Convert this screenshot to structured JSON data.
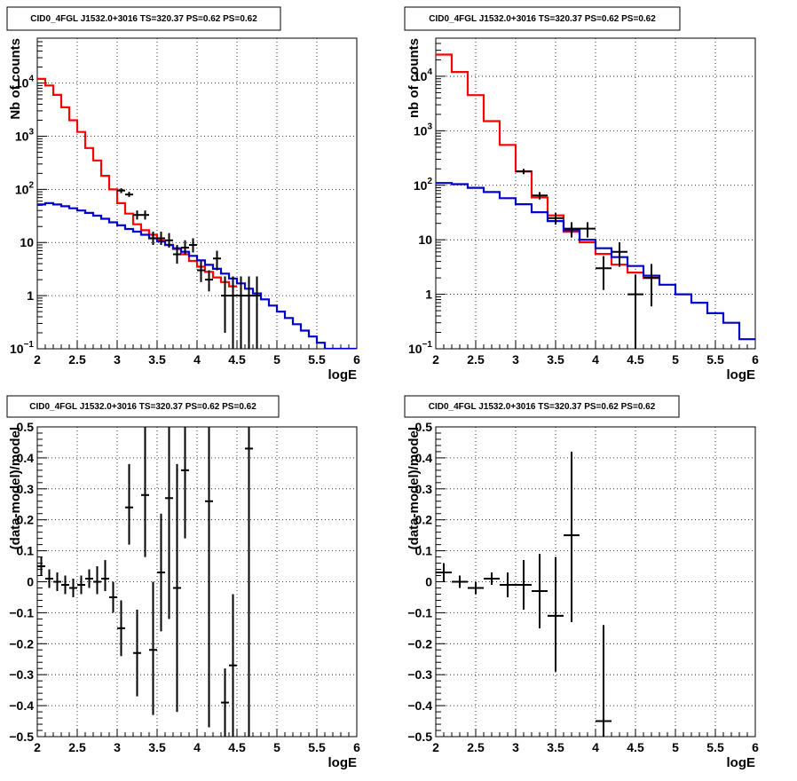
{
  "chart_data": [
    {
      "type": "line",
      "title": "CID0_4FGL J1532.0+3016 TS=320.37 PS=0.62 PS=0.62",
      "xlabel": "logE",
      "ylabel": "Nb of counts",
      "xlim": [
        2,
        6
      ],
      "ylim": [
        0.1,
        70000
      ],
      "yscale": "log",
      "grid": true,
      "xticks": [
        "2",
        "2.5",
        "3",
        "3.5",
        "4",
        "4.5",
        "5",
        "5.5",
        "6"
      ],
      "yticks": [
        {
          "v": 0.1,
          "t": "10",
          "sup": "−1"
        },
        {
          "v": 1,
          "t": "1",
          "sup": ""
        },
        {
          "v": 10,
          "t": "10",
          "sup": ""
        },
        {
          "v": 100,
          "t": "10",
          "sup": "2"
        },
        {
          "v": 1000,
          "t": "10",
          "sup": "3"
        },
        {
          "v": 10000,
          "t": "10",
          "sup": "4"
        }
      ],
      "series": [
        {
          "color": "#ff0000",
          "binwidth": 0.1,
          "x": [
            2.0,
            2.1,
            2.2,
            2.3,
            2.4,
            2.5,
            2.6,
            2.7,
            2.8,
            2.9,
            3.0,
            3.1,
            3.2,
            3.3,
            3.4,
            3.5,
            3.6,
            3.7,
            3.8,
            3.9,
            4.0,
            4.1,
            4.2,
            4.3,
            4.4
          ],
          "y": [
            12000,
            9000,
            6000,
            3500,
            2000,
            1200,
            600,
            350,
            180,
            100,
            55,
            35,
            22,
            17,
            14,
            11,
            9,
            7.5,
            6,
            4.5,
            3.5,
            2.8,
            2.2,
            1.8,
            1.5
          ]
        },
        {
          "color": "#0000cc",
          "binwidth": 0.1,
          "x": [
            2.0,
            2.1,
            2.2,
            2.3,
            2.4,
            2.5,
            2.6,
            2.7,
            2.8,
            2.9,
            3.0,
            3.1,
            3.2,
            3.3,
            3.4,
            3.5,
            3.6,
            3.7,
            3.8,
            3.9,
            4.0,
            4.1,
            4.2,
            4.3,
            4.4,
            4.5,
            4.6,
            4.7,
            4.8,
            4.9,
            5.0,
            5.1,
            5.2,
            5.3,
            5.4,
            5.5,
            5.6,
            5.7,
            5.8,
            5.9
          ],
          "y": [
            52,
            55,
            52,
            48,
            44,
            40,
            36,
            32,
            28,
            24,
            21,
            18,
            16,
            14,
            12,
            10.5,
            9,
            7.8,
            6.7,
            5.6,
            4.6,
            3.8,
            3.2,
            2.6,
            2.1,
            1.7,
            1.35,
            1.1,
            0.85,
            0.65,
            0.5,
            0.38,
            0.29,
            0.22,
            0.17,
            0.13,
            0.1,
            0.1,
            0.1,
            0.1
          ]
        },
        {
          "color": "#000000",
          "kind": "points",
          "x": [
            3.05,
            3.15,
            3.25,
            3.35,
            3.45,
            3.55,
            3.65,
            3.75,
            3.85,
            3.95,
            4.05,
            4.15,
            4.25,
            4.35,
            4.45,
            4.55,
            4.65,
            4.75
          ],
          "y": [
            95,
            80,
            33,
            33,
            12,
            12,
            11,
            6,
            8,
            9,
            3,
            2,
            5,
            1,
            1,
            1,
            1,
            1
          ],
          "lo": [
            85,
            72,
            27,
            27,
            9,
            9,
            8,
            4,
            6,
            6.5,
            1.8,
            1.2,
            3,
            0.2,
            0.1,
            0.1,
            0.1,
            0.1
          ],
          "hi": [
            105,
            90,
            40,
            40,
            16,
            16,
            15,
            9,
            11,
            12,
            4.5,
            3,
            7,
            2.3,
            2.3,
            2.3,
            2.3,
            2.3
          ]
        }
      ]
    },
    {
      "type": "line",
      "title": "CID0_4FGL J1532.0+3016 TS=320.37 PS=0.62 PS=0.62",
      "xlabel": "logE",
      "ylabel": "nb of counts",
      "xlim": [
        2,
        6
      ],
      "ylim": [
        0.1,
        50000
      ],
      "yscale": "log",
      "grid": true,
      "xticks": [
        "2",
        "2.5",
        "3",
        "3.5",
        "4",
        "4.5",
        "5",
        "5.5",
        "6"
      ],
      "yticks": [
        {
          "v": 0.1,
          "t": "10",
          "sup": "−1"
        },
        {
          "v": 1,
          "t": "1",
          "sup": ""
        },
        {
          "v": 10,
          "t": "10",
          "sup": ""
        },
        {
          "v": 100,
          "t": "10",
          "sup": "2"
        },
        {
          "v": 1000,
          "t": "10",
          "sup": "3"
        },
        {
          "v": 10000,
          "t": "10",
          "sup": "4"
        }
      ],
      "series": [
        {
          "color": "#ff0000",
          "binwidth": 0.2,
          "x": [
            2.0,
            2.2,
            2.4,
            2.6,
            2.8,
            3.0,
            3.2,
            3.4,
            3.6,
            3.8,
            4.0,
            4.2,
            4.4,
            4.6
          ],
          "y": [
            25000,
            12000,
            4500,
            1500,
            550,
            180,
            60,
            28,
            14,
            9,
            5.5,
            3.5,
            2.5,
            2
          ]
        },
        {
          "color": "#0000cc",
          "binwidth": 0.2,
          "x": [
            2.0,
            2.2,
            2.4,
            2.6,
            2.8,
            3.0,
            3.2,
            3.4,
            3.6,
            3.8,
            4.0,
            4.2,
            4.4,
            4.6,
            4.8,
            5.0,
            5.2,
            5.4,
            5.6,
            5.8
          ],
          "y": [
            110,
            105,
            90,
            75,
            58,
            45,
            32,
            22,
            15,
            10,
            7,
            4.8,
            3.3,
            2.2,
            1.5,
            1.0,
            0.7,
            0.45,
            0.3,
            0.15
          ]
        },
        {
          "color": "#000000",
          "kind": "points",
          "x": [
            3.1,
            3.3,
            3.5,
            3.7,
            3.9,
            4.1,
            4.3,
            4.5,
            4.7
          ],
          "y": [
            180,
            65,
            25,
            16,
            16,
            3,
            6,
            1,
            2
          ],
          "lo": [
            160,
            55,
            19,
            11,
            11,
            1.2,
            3.2,
            0.1,
            0.6
          ],
          "hi": [
            200,
            75,
            31,
            21,
            21,
            5,
            9,
            2.3,
            3.6
          ]
        }
      ]
    },
    {
      "type": "scatter",
      "title": "CID0_4FGL J1532.0+3016 TS=320.37 PS=0.62 PS=0.62",
      "xlabel": "logE",
      "ylabel": "(data-model)/model",
      "xlim": [
        2,
        6
      ],
      "ylim": [
        -0.5,
        0.5
      ],
      "grid": true,
      "xticks": [
        "2",
        "2.5",
        "3",
        "3.5",
        "4",
        "4.5",
        "5",
        "5.5",
        "6"
      ],
      "yticks": [
        "−0.5",
        "−0.4",
        "−0.3",
        "−0.2",
        "−0.1",
        "0",
        "0.1",
        "0.2",
        "0.3",
        "0.4",
        "0.5"
      ],
      "points": {
        "x": [
          2.05,
          2.15,
          2.25,
          2.35,
          2.45,
          2.55,
          2.65,
          2.75,
          2.85,
          2.95,
          3.05,
          3.15,
          3.25,
          3.35,
          3.45,
          3.55,
          3.65,
          3.75,
          3.85,
          4.15,
          4.35,
          4.45,
          4.65
        ],
        "y": [
          0.05,
          0.01,
          0.0,
          -0.01,
          -0.02,
          -0.01,
          0.01,
          0.0,
          0.01,
          -0.05,
          -0.15,
          0.24,
          -0.23,
          0.28,
          -0.22,
          0.03,
          0.27,
          -0.02,
          0.36,
          0.26,
          -0.39,
          -0.27,
          0.43
        ],
        "lo": [
          0.02,
          -0.02,
          -0.03,
          -0.04,
          -0.05,
          -0.04,
          -0.02,
          -0.04,
          -0.03,
          -0.1,
          -0.24,
          0.12,
          -0.37,
          0.08,
          -0.43,
          -0.16,
          -0.12,
          -0.42,
          0.14,
          -0.47,
          -0.5,
          -0.5,
          -0.5
        ],
        "hi": [
          0.08,
          0.04,
          0.03,
          0.02,
          0.01,
          0.02,
          0.04,
          0.05,
          0.07,
          0.0,
          -0.06,
          0.38,
          -0.09,
          0.5,
          0.0,
          0.22,
          0.5,
          0.38,
          0.5,
          0.5,
          -0.28,
          -0.04,
          0.5
        ]
      }
    },
    {
      "type": "scatter",
      "title": "CID0_4FGL J1532.0+3016 TS=320.37 PS=0.62 PS=0.62",
      "xlabel": "logE",
      "ylabel": "(data-model)/model",
      "xlim": [
        2,
        6
      ],
      "ylim": [
        -0.5,
        0.5
      ],
      "grid": true,
      "xticks": [
        "2",
        "2.5",
        "3",
        "3.5",
        "4",
        "4.5",
        "5",
        "5.5",
        "6"
      ],
      "yticks": [
        "−0.5",
        "−0.4",
        "−0.3",
        "−0.2",
        "−0.1",
        "0",
        "0.1",
        "0.2",
        "0.3",
        "0.4",
        "0.5"
      ],
      "points": {
        "x": [
          2.1,
          2.3,
          2.5,
          2.7,
          2.9,
          3.1,
          3.3,
          3.5,
          3.7,
          4.1
        ],
        "y": [
          0.03,
          0.0,
          -0.02,
          0.01,
          -0.01,
          -0.01,
          -0.03,
          -0.11,
          0.15,
          -0.45
        ],
        "lo": [
          0.0,
          -0.02,
          -0.04,
          -0.01,
          -0.05,
          -0.09,
          -0.15,
          -0.29,
          -0.13,
          -0.5
        ],
        "hi": [
          0.06,
          0.02,
          0.0,
          0.03,
          0.03,
          0.07,
          0.09,
          0.08,
          0.42,
          -0.14
        ]
      }
    }
  ]
}
